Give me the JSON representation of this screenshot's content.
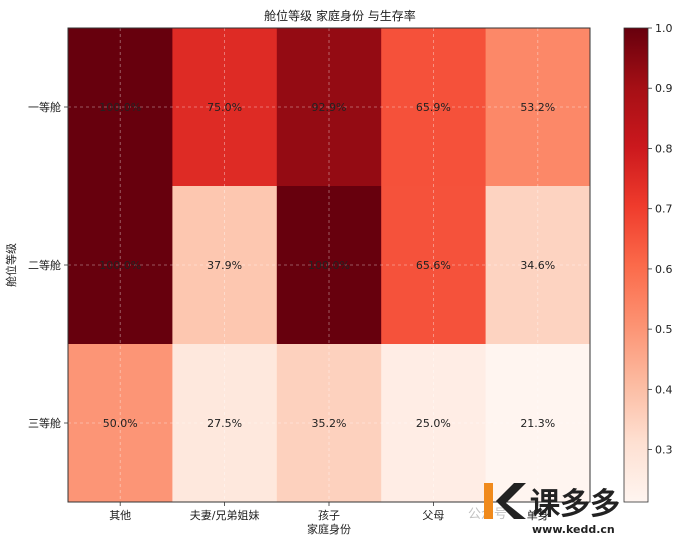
{
  "chart_data": {
    "type": "heatmap",
    "title": "舱位等级    家庭身份 与生存率",
    "xlabel": "家庭身份",
    "ylabel": "舱位等级",
    "x_categories": [
      "其他",
      "夫妻/兄弟姐妹",
      "孩子",
      "父母",
      "单身"
    ],
    "y_categories": [
      "一等舱",
      "二等舱",
      "三等舱"
    ],
    "values": [
      [
        1.0,
        0.75,
        0.929,
        0.659,
        0.532
      ],
      [
        1.0,
        0.379,
        1.0,
        0.656,
        0.346
      ],
      [
        0.5,
        0.275,
        0.352,
        0.25,
        0.213
      ]
    ],
    "cell_labels": [
      [
        "100.0%",
        "75.0%",
        "92.9%",
        "65.9%",
        "53.2%"
      ],
      [
        "100.0%",
        "37.9%",
        "100.0%",
        "65.6%",
        "34.6%"
      ],
      [
        "50.0%",
        "27.5%",
        "35.2%",
        "25.0%",
        "21.3%"
      ]
    ],
    "colorbar": {
      "min": 0.213,
      "max": 1.0,
      "ticks": [
        "0.3",
        "0.4",
        "0.5",
        "0.6",
        "0.7",
        "0.8",
        "0.9",
        "1.0"
      ],
      "colormap": "Reds"
    },
    "grid": true
  },
  "watermark": {
    "text": "公众号",
    "brand": "课多多",
    "url": "www.kedd.cn"
  }
}
